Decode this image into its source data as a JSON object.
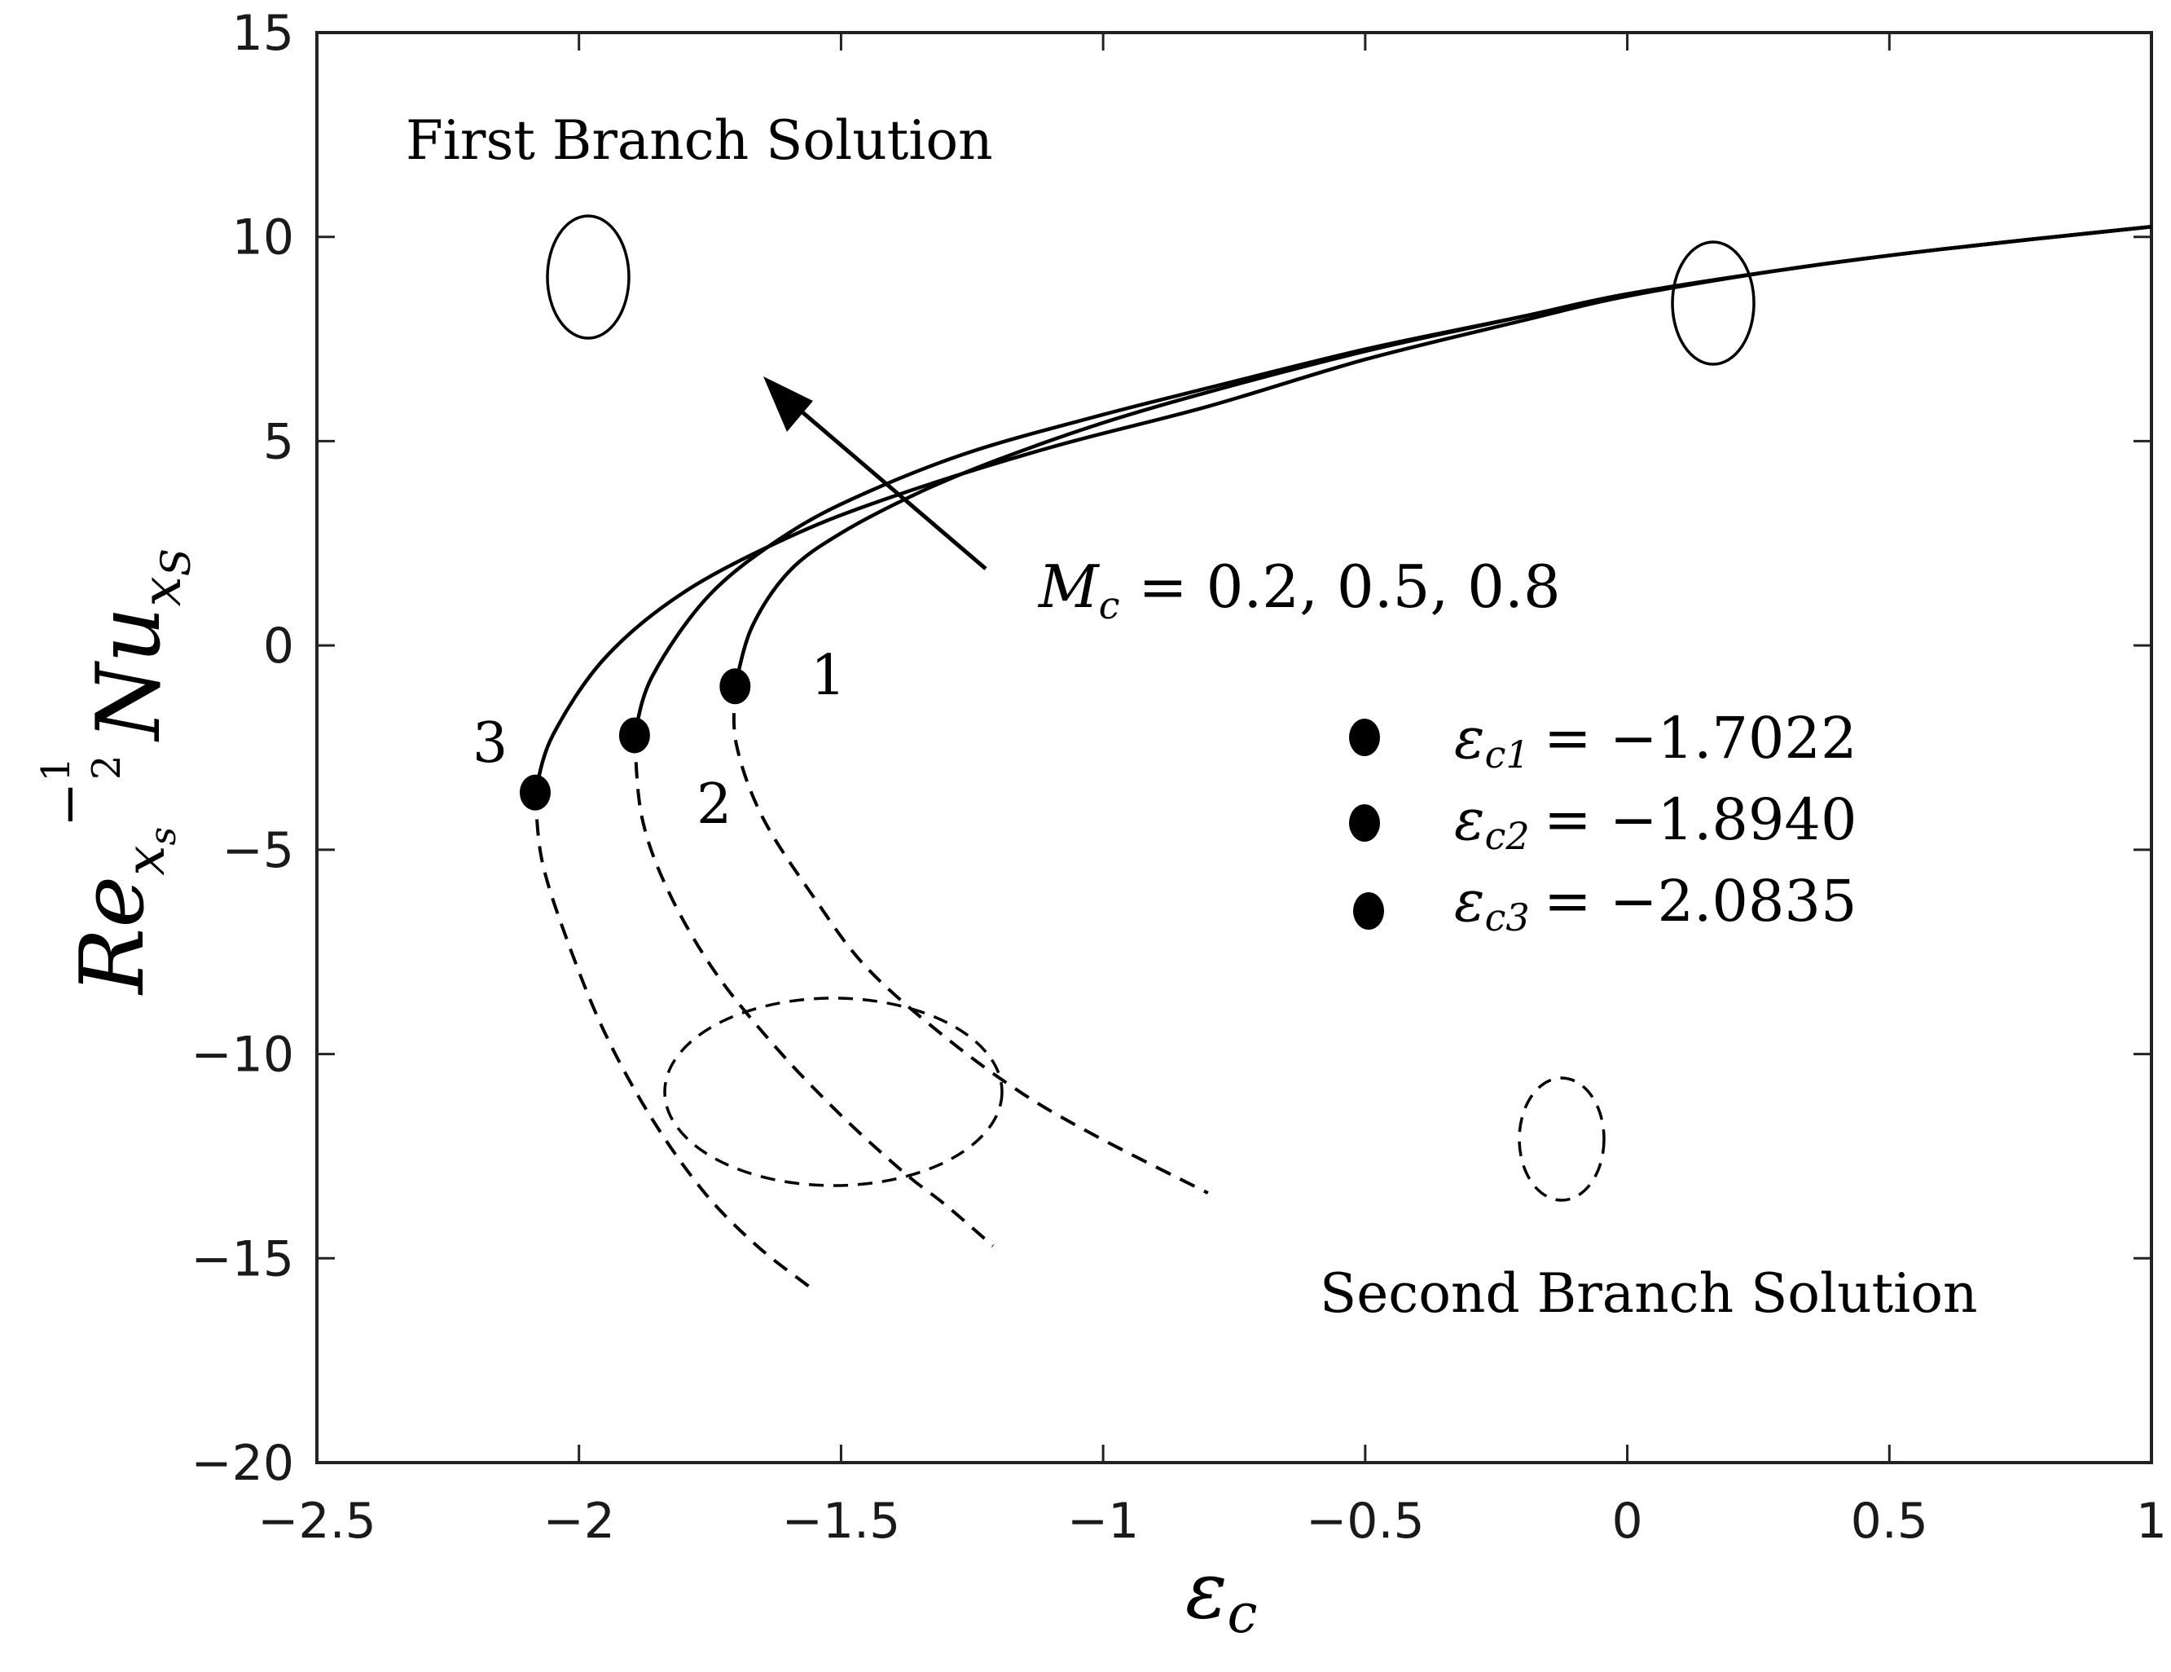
{
  "chart_data": {
    "type": "line",
    "xlim": [
      -2.5,
      1
    ],
    "ylim": [
      -20,
      15
    ],
    "x_ticks": [
      -2.5,
      -2,
      -1.5,
      -1,
      -0.5,
      0,
      0.5,
      1
    ],
    "y_ticks": [
      15,
      10,
      5,
      0,
      -5,
      -10,
      -15,
      -20
    ],
    "x_tick_labels": [
      "−2.5",
      "−2",
      "−1.5",
      "−1",
      "−0.5",
      "0",
      "0.5",
      "1"
    ],
    "y_tick_labels": [
      "15",
      "10",
      "5",
      "0",
      "−5",
      "−10",
      "−15",
      "−20"
    ],
    "xlabel": "εc",
    "ylabel": "Re_xs^(−1/2) Nu_xS",
    "grid": false,
    "series": [
      {
        "curve_label": "1",
        "critical_point": [
          -1.7022,
          -1.0
        ],
        "first_branch": {
          "style": "solid",
          "x": [
            -1.7022,
            -1.67,
            -1.6,
            -1.5,
            -1.35,
            -1.2,
            -1.0,
            -0.8,
            -0.5,
            -0.2,
            0.0,
            0.3,
            0.6,
            1.0
          ],
          "y": [
            -1.0,
            0.45,
            1.8,
            2.75,
            3.75,
            4.55,
            5.45,
            6.2,
            7.2,
            8.05,
            8.6,
            9.2,
            9.7,
            10.25
          ]
        },
        "second_branch": {
          "style": "dashed",
          "x": [
            -1.7022,
            -1.7,
            -1.65,
            -1.55,
            -1.45,
            -1.3,
            -1.15,
            -1.0,
            -0.8
          ],
          "y": [
            -1.0,
            -2.4,
            -4.2,
            -6.2,
            -7.9,
            -9.6,
            -11.0,
            -12.1,
            -13.4
          ]
        }
      },
      {
        "curve_label": "2",
        "critical_point": [
          -1.894,
          -2.2
        ],
        "first_branch": {
          "style": "solid",
          "x": [
            -1.894,
            -1.86,
            -1.75,
            -1.6,
            -1.45,
            -1.25,
            -1.0,
            -0.8,
            -0.5,
            -0.2,
            0.0,
            0.3,
            0.6,
            1.0
          ],
          "y": [
            -2.2,
            -0.75,
            1.25,
            2.75,
            3.75,
            4.75,
            5.65,
            6.3,
            7.25,
            8.05,
            8.6,
            9.2,
            9.7,
            10.25
          ]
        },
        "second_branch": {
          "style": "dashed",
          "x": [
            -1.894,
            -1.88,
            -1.83,
            -1.74,
            -1.62,
            -1.5,
            -1.38,
            -1.3,
            -1.21
          ],
          "y": [
            -2.2,
            -4.2,
            -6.0,
            -8.0,
            -9.9,
            -11.5,
            -12.9,
            -13.7,
            -14.7
          ]
        }
      },
      {
        "curve_label": "3",
        "critical_point": [
          -2.0835,
          -3.6
        ],
        "first_branch": {
          "style": "solid",
          "x": [
            -2.0835,
            -2.05,
            -1.95,
            -1.8,
            -1.6,
            -1.4,
            -1.1,
            -0.8,
            -0.5,
            -0.2,
            0.0,
            0.3,
            0.6,
            1.0
          ],
          "y": [
            -3.6,
            -2.2,
            -0.3,
            1.3,
            2.65,
            3.65,
            4.85,
            5.85,
            7.0,
            7.95,
            8.55,
            9.2,
            9.7,
            10.25
          ]
        },
        "second_branch": {
          "style": "dashed",
          "x": [
            -2.0835,
            -2.07,
            -2.02,
            -1.95,
            -1.86,
            -1.76,
            -1.66,
            -1.56
          ],
          "y": [
            -3.6,
            -5.3,
            -7.3,
            -9.5,
            -11.6,
            -13.4,
            -14.7,
            -15.7
          ]
        }
      }
    ],
    "annotations": {
      "first_branch": "First Branch Solution",
      "second_branch": "Second Branch Solution",
      "parameter": "Mc = 0.2, 0.5, 0.8",
      "critical_values": [
        {
          "name": "εc1",
          "value": "−1.7022"
        },
        {
          "name": "εc2",
          "value": "−1.8940"
        },
        {
          "name": "εc3",
          "value": "−2.0835"
        }
      ]
    }
  }
}
